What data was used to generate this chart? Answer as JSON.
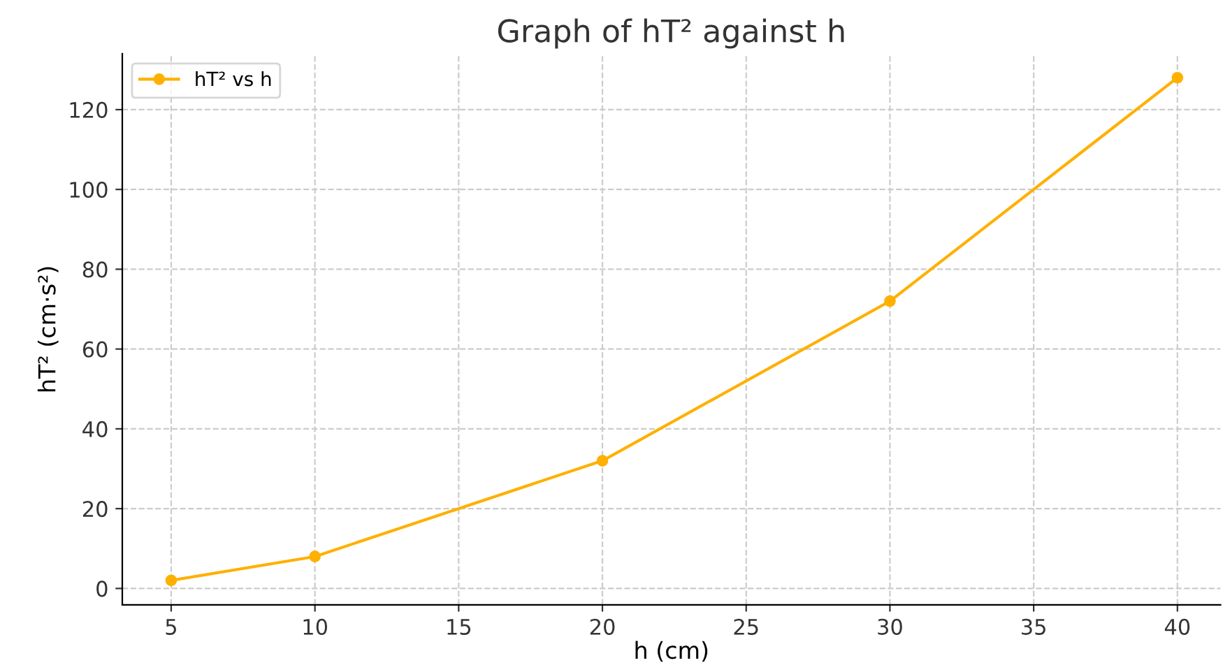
{
  "chart_data": {
    "type": "line",
    "title": "Graph of hT² against h",
    "xlabel": "h (cm)",
    "ylabel": "hT² (cm·s²)",
    "x": [
      5,
      10,
      20,
      30,
      40
    ],
    "series": [
      {
        "name": "hT² vs h",
        "color": "#ffb000",
        "values": [
          2,
          8,
          32,
          72,
          128
        ]
      }
    ],
    "xlim": [
      3.3,
      41.5
    ],
    "xticks": [
      5,
      10,
      15,
      20,
      25,
      30,
      35,
      40
    ],
    "ylim": [
      -4.1,
      134
    ],
    "yticks": [
      0,
      20,
      40,
      60,
      80,
      100,
      120
    ],
    "grid": true,
    "legend": "top left",
    "marker": "circle",
    "line_style": "solid"
  }
}
